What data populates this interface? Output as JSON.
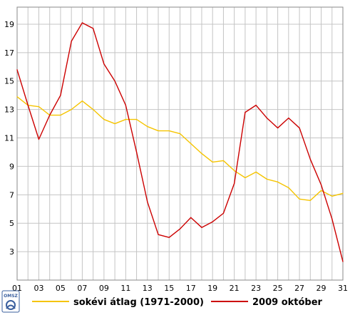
{
  "chart_data": {
    "type": "line",
    "x": [
      1,
      2,
      3,
      4,
      5,
      6,
      7,
      8,
      9,
      10,
      11,
      12,
      13,
      14,
      15,
      16,
      17,
      18,
      19,
      20,
      21,
      22,
      23,
      24,
      25,
      26,
      27,
      28,
      29,
      30,
      31
    ],
    "x_tick_labels": [
      "01",
      "03",
      "05",
      "07",
      "09",
      "11",
      "13",
      "15",
      "17",
      "19",
      "21",
      "23",
      "25",
      "27",
      "29",
      "31"
    ],
    "y_ticks": [
      3,
      5,
      7,
      9,
      11,
      13,
      15,
      17,
      19
    ],
    "xlim": [
      1,
      31
    ],
    "ylim": [
      1,
      20.2
    ],
    "grid": true,
    "legend_position": "bottom",
    "series": [
      {
        "name": "sokévi átlag (1971-2000)",
        "color": "#f5c400",
        "values": [
          13.9,
          13.3,
          13.2,
          12.6,
          12.6,
          13.0,
          13.6,
          13.0,
          12.3,
          12.0,
          12.3,
          12.3,
          11.8,
          11.5,
          11.5,
          11.3,
          10.6,
          9.9,
          9.3,
          9.4,
          8.7,
          8.2,
          8.6,
          8.1,
          7.9,
          7.5,
          6.7,
          6.6,
          7.3,
          6.9,
          7.1
        ]
      },
      {
        "name": "2009 október",
        "color": "#cc0000",
        "values": [
          15.8,
          13.3,
          10.9,
          12.6,
          14.0,
          17.8,
          19.1,
          18.7,
          16.2,
          15.0,
          13.3,
          10.0,
          6.5,
          4.2,
          4.0,
          4.6,
          5.4,
          4.7,
          5.1,
          5.7,
          7.8,
          12.8,
          13.3,
          12.4,
          11.7,
          12.4,
          11.7,
          9.5,
          7.7,
          5.3,
          2.3
        ]
      }
    ]
  },
  "logo": {
    "text": "OMSZ",
    "color": "#3a5f9e"
  }
}
